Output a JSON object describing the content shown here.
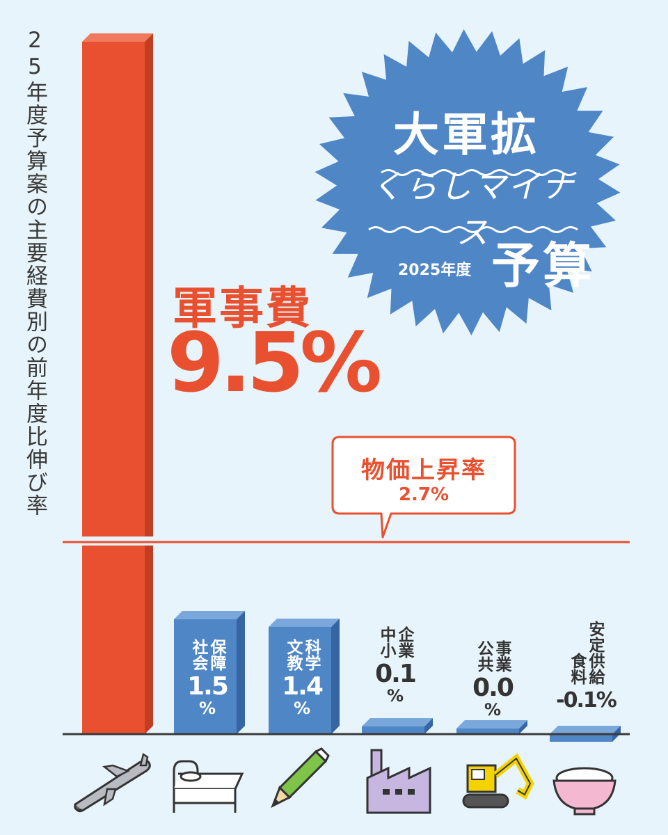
{
  "y_axis_label": "25年度予算案の主要経費別の前年度比伸び率",
  "badge": {
    "title": "大軍拡",
    "subtitle": "くらしマイナス",
    "year": "2025年度",
    "word": "予算"
  },
  "military": {
    "category": "軍事費",
    "value_label": "9.5%"
  },
  "inflation_callout": {
    "label": "物価上昇率",
    "value_label": "2.7%"
  },
  "bar_labels": [
    {
      "cat_col1": "社会",
      "cat_col2": "保障",
      "value_text": "1.5",
      "pct": "%"
    },
    {
      "cat_col1": "文教",
      "cat_col2": "科学",
      "value_text": "1.4",
      "pct": "%"
    },
    {
      "cat_col1": "中小",
      "cat_col2": "企業",
      "value_text": "0.1",
      "pct": "%"
    },
    {
      "cat_col1": "公共",
      "cat_col2": "事業",
      "value_text": "0.0",
      "pct": "%"
    },
    {
      "cat_col1": "食料",
      "cat_col2": "安定供給",
      "value_text": "-0.1%",
      "pct": ""
    }
  ],
  "colors": {
    "background": "#e7f4fb",
    "military": "#e8502f",
    "military_dark": "#c33d20",
    "others": "#4f86c6",
    "others_dark": "#3565a3",
    "badge": "#4f86c6",
    "inflation_line": "#e8502f"
  },
  "icons": [
    "missile-icon",
    "bed-icon",
    "pencil-icon",
    "factory-icon",
    "excavator-icon",
    "rice-bowl-icon"
  ],
  "chart_data": {
    "type": "bar",
    "categories": [
      "軍事費",
      "社会保障",
      "文教科学",
      "中小企業",
      "公共事業",
      "食料安定供給"
    ],
    "series": [
      {
        "values": [
          9.5,
          1.5,
          1.4,
          0.1,
          0.0,
          -0.1
        ]
      }
    ],
    "reference_line": {
      "label": "物価上昇率",
      "value": 2.7
    },
    "y_axis_broken": true,
    "ylabel": "25年度予算案の主要経費別の前年度比伸び率",
    "grid": false,
    "legend": "none"
  }
}
